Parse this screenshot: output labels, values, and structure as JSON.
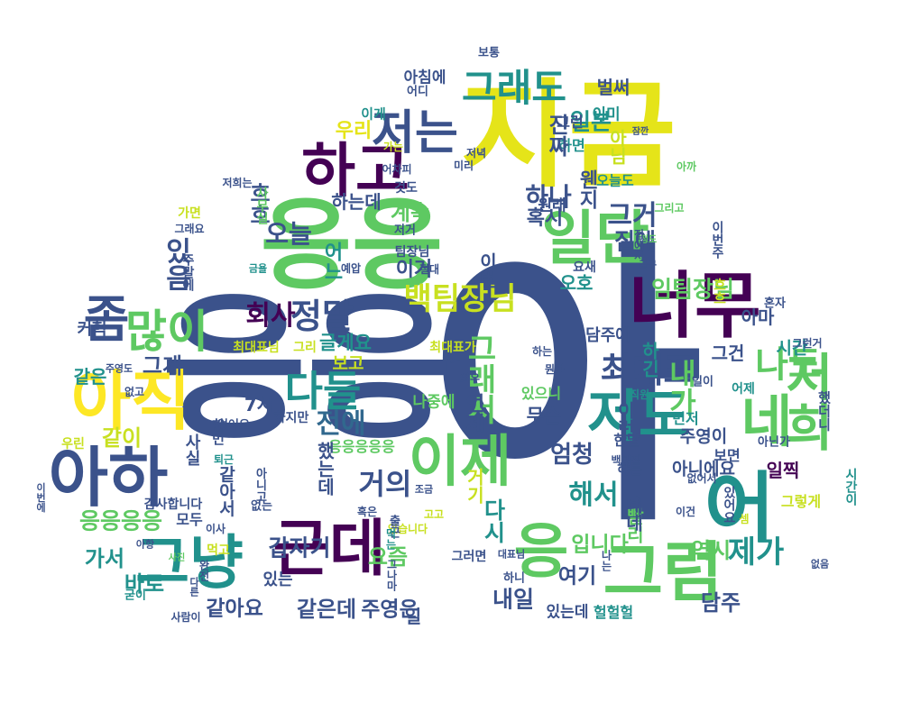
{
  "cloud": {
    "words": [
      {
        "text": "아",
        "color": "#3b528b"
      },
      {
        "text": "응응",
        "color": "#3b528b"
      },
      {
        "text": "지금",
        "color": "#e5e419"
      },
      {
        "text": "응응",
        "color": "#5ec962"
      },
      {
        "text": "하고",
        "color": "#440154"
      },
      {
        "text": "일단",
        "color": "#5ec962"
      },
      {
        "text": "너무",
        "color": "#440154"
      },
      {
        "text": "저는",
        "color": "#3b528b"
      },
      {
        "text": "그래도",
        "color": "#21918c"
      },
      {
        "text": "좀",
        "color": "#3b528b"
      },
      {
        "text": "그냥",
        "color": "#21918c"
      },
      {
        "text": "많이",
        "color": "#5ec962"
      },
      {
        "text": "아직",
        "color": "#fde725"
      },
      {
        "text": "아하",
        "color": "#3b528b"
      },
      {
        "text": "근데",
        "color": "#440154"
      },
      {
        "text": "응",
        "color": "#5ec962"
      },
      {
        "text": "그럼",
        "color": "#5ec962"
      },
      {
        "text": "어",
        "color": "#21918c"
      },
      {
        "text": "저희",
        "color": "#5ec962"
      },
      {
        "text": "네",
        "color": "#5ec962"
      },
      {
        "text": "저도",
        "color": "#21918c"
      },
      {
        "text": "이제",
        "color": "#5ec962"
      },
      {
        "text": "회사",
        "color": "#440154"
      },
      {
        "text": "정말",
        "color": "#3b528b"
      },
      {
        "text": "백팀장님",
        "color": "#c8e020"
      },
      {
        "text": "다들",
        "color": "#21918c"
      },
      {
        "text": "전에",
        "color": "#31688e"
      },
      {
        "text": "거의",
        "color": "#3b528b"
      },
      {
        "text": "최대표",
        "color": "#3b528b"
      },
      {
        "text": "나도",
        "color": "#5ec962"
      },
      {
        "text": "내가",
        "color": "#5ec962"
      },
      {
        "text": "그래서",
        "color": "#5ec962"
      },
      {
        "text": "우리",
        "color": "#e5e419"
      },
      {
        "text": "일본",
        "color": "#21918c"
      },
      {
        "text": "그거",
        "color": "#3b528b"
      },
      {
        "text": "하나",
        "color": "#3b528b"
      },
      {
        "text": "집에",
        "color": "#3b528b"
      },
      {
        "text": "혹시",
        "color": "#3b528b"
      },
      {
        "text": "임팀장님",
        "color": "#5ec962"
      },
      {
        "text": "계속",
        "color": "#5ec962"
      },
      {
        "text": "이거",
        "color": "#3b528b"
      },
      {
        "text": "이번",
        "color": "#3b528b"
      },
      {
        "text": "오호",
        "color": "#21918c"
      },
      {
        "text": "어느",
        "color": "#21918c"
      },
      {
        "text": "하는데",
        "color": "#3b528b"
      },
      {
        "text": "오늘",
        "color": "#3b528b"
      },
      {
        "text": "흐흐",
        "color": "#3b528b"
      },
      {
        "text": "있음",
        "color": "#3b528b"
      },
      {
        "text": "커헉",
        "color": "#3b528b"
      },
      {
        "text": "그게",
        "color": "#3b528b"
      },
      {
        "text": "같은",
        "color": "#21918c"
      },
      {
        "text": "같이",
        "color": "#c8e020"
      },
      {
        "text": "글게요",
        "color": "#21918c"
      },
      {
        "text": "보고",
        "color": "#c8e020"
      },
      {
        "text": "무슨",
        "color": "#3b528b"
      },
      {
        "text": "엄청",
        "color": "#3b528b"
      },
      {
        "text": "해서",
        "color": "#21918c"
      },
      {
        "text": "제가",
        "color": "#21918c"
      },
      {
        "text": "일찍",
        "color": "#440154"
      },
      {
        "text": "시간",
        "color": "#21918c"
      },
      {
        "text": "아마",
        "color": "#3b528b"
      },
      {
        "text": "그건",
        "color": "#3b528b"
      },
      {
        "text": "하긴",
        "color": "#21918c"
      },
      {
        "text": "담주에",
        "color": "#3b528b"
      },
      {
        "text": "주영이",
        "color": "#3b528b"
      },
      {
        "text": "보면",
        "color": "#3b528b"
      },
      {
        "text": "아니에요",
        "color": "#3b528b"
      },
      {
        "text": "이런",
        "color": "#3b528b"
      },
      {
        "text": "빨리",
        "color": "#5ec962"
      },
      {
        "text": "먼저",
        "color": "#21918c"
      },
      {
        "text": "한달",
        "color": "#3b528b"
      },
      {
        "text": "입니다",
        "color": "#5ec962"
      },
      {
        "text": "여기",
        "color": "#3b528b"
      },
      {
        "text": "역시",
        "color": "#5ec962"
      },
      {
        "text": "담주",
        "color": "#3b528b"
      },
      {
        "text": "내일",
        "color": "#3b528b"
      },
      {
        "text": "있는데",
        "color": "#3b528b"
      },
      {
        "text": "헐헐헐",
        "color": "#21918c"
      },
      {
        "text": "요즘",
        "color": "#5ec962"
      },
      {
        "text": "주영은",
        "color": "#3b528b"
      },
      {
        "text": "같은데",
        "color": "#3b528b"
      },
      {
        "text": "같아요",
        "color": "#3b528b"
      },
      {
        "text": "갑자기",
        "color": "#3b528b"
      },
      {
        "text": "있는",
        "color": "#3b528b"
      },
      {
        "text": "바로",
        "color": "#21918c"
      },
      {
        "text": "가서",
        "color": "#21918c"
      },
      {
        "text": "응응응응",
        "color": "#5ec962"
      },
      {
        "text": "응응응응응",
        "color": "#5ec962"
      },
      {
        "text": "감사합니다",
        "color": "#3b528b"
      },
      {
        "text": "모두",
        "color": "#3b528b"
      },
      {
        "text": "7시",
        "color": "#3b528b"
      },
      {
        "text": "나중에",
        "color": "#5ec962"
      },
      {
        "text": "벌써",
        "color": "#3b528b"
      },
      {
        "text": "아침에",
        "color": "#3b528b"
      },
      {
        "text": "어디",
        "color": "#3b528b"
      },
      {
        "text": "보통",
        "color": "#3b528b"
      },
      {
        "text": "이미",
        "color": "#21918c"
      },
      {
        "text": "그런",
        "color": "#3b528b"
      },
      {
        "text": "하면",
        "color": "#21918c"
      },
      {
        "text": "잠깐",
        "color": "#3b528b"
      },
      {
        "text": "이게",
        "color": "#21918c"
      },
      {
        "text": "원래",
        "color": "#3b528b"
      },
      {
        "text": "오늘도",
        "color": "#21918c"
      },
      {
        "text": "그리고",
        "color": "#5ec962"
      },
      {
        "text": "아까",
        "color": "#5ec962"
      },
      {
        "text": "가면",
        "color": "#c8e020"
      },
      {
        "text": "그래요",
        "color": "#3b528b"
      },
      {
        "text": "금욜",
        "color": "#21918c"
      },
      {
        "text": "예압",
        "color": "#3b528b"
      },
      {
        "text": "절대",
        "color": "#3b528b"
      },
      {
        "text": "팀장님",
        "color": "#3b528b"
      },
      {
        "text": "저희는",
        "color": "#3b528b"
      },
      {
        "text": "것도",
        "color": "#3b528b"
      },
      {
        "text": "저거",
        "color": "#3b528b"
      },
      {
        "text": "정도",
        "color": "#5ec962"
      },
      {
        "text": "글구",
        "color": "#3b528b"
      },
      {
        "text": "요새",
        "color": "#3b528b"
      },
      {
        "text": "혼자",
        "color": "#3b528b"
      },
      {
        "text": "최대표님",
        "color": "#c8e020"
      },
      {
        "text": "그리",
        "color": "#c8e020"
      },
      {
        "text": "최대표가",
        "color": "#c8e020"
      },
      {
        "text": "와우",
        "color": "#3b528b"
      },
      {
        "text": "뭔가",
        "color": "#3b528b"
      },
      {
        "text": "일이",
        "color": "#3b528b"
      },
      {
        "text": "직원",
        "color": "#21918c"
      },
      {
        "text": "있으니",
        "color": "#5ec962"
      },
      {
        "text": "아닌가",
        "color": "#3b528b"
      },
      {
        "text": "했더니",
        "color": "#3b528b"
      },
      {
        "text": "백팀장",
        "color": "#3b528b"
      },
      {
        "text": "하튼",
        "color": "#3b528b"
      },
      {
        "text": "없어서",
        "color": "#3b528b"
      },
      {
        "text": "사진",
        "color": "#5ec962"
      },
      {
        "text": "먹고",
        "color": "#c8e020"
      },
      {
        "text": "아항",
        "color": "#3b528b"
      },
      {
        "text": "이사",
        "color": "#3b528b"
      },
      {
        "text": "굳이",
        "color": "#21918c"
      },
      {
        "text": "사람이",
        "color": "#3b528b"
      },
      {
        "text": "하지만",
        "color": "#3b528b"
      },
      {
        "text": "없어요",
        "color": "#3b528b"
      },
      {
        "text": "조금",
        "color": "#3b528b"
      },
      {
        "text": "고고",
        "color": "#c8e020"
      },
      {
        "text": "그러면",
        "color": "#3b528b"
      },
      {
        "text": "대표님",
        "color": "#3b528b"
      },
      {
        "text": "하니",
        "color": "#3b528b"
      },
      {
        "text": "있습니다",
        "color": "#c8e020"
      },
      {
        "text": "없는",
        "color": "#3b528b"
      },
      {
        "text": "퇴근",
        "color": "#21918c"
      },
      {
        "text": "우린",
        "color": "#c8e020"
      },
      {
        "text": "없고",
        "color": "#3b528b"
      },
      {
        "text": "주영도",
        "color": "#3b528b"
      },
      {
        "text": "그런거",
        "color": "#3b528b"
      },
      {
        "text": "어제",
        "color": "#21918c"
      },
      {
        "text": "이건",
        "color": "#3b528b"
      },
      {
        "text": "없음",
        "color": "#3b528b"
      },
      {
        "text": "셈",
        "color": "#c8e020"
      },
      {
        "text": "그렇게",
        "color": "#c8e020"
      },
      {
        "text": "시간이",
        "color": "#21918c"
      },
      {
        "text": "이번주",
        "color": "#3b528b"
      },
      {
        "text": "집에서",
        "color": "#3b528b"
      },
      {
        "text": "흐흐",
        "color": "#c8e020"
      },
      {
        "text": "진짜",
        "color": "#3b528b"
      },
      {
        "text": "웬지",
        "color": "#3b528b"
      },
      {
        "text": "아님",
        "color": "#c8e020"
      },
      {
        "text": "저녁",
        "color": "#3b528b"
      },
      {
        "text": "어차피",
        "color": "#3b528b"
      },
      {
        "text": "미리",
        "color": "#3b528b"
      },
      {
        "text": "가는",
        "color": "#c8e020"
      },
      {
        "text": "했는데",
        "color": "#3b528b"
      },
      {
        "text": "언제",
        "color": "#3b528b"
      },
      {
        "text": "다시",
        "color": "#21918c"
      },
      {
        "text": "거기",
        "color": "#c8e020"
      },
      {
        "text": "네네",
        "color": "#3b528b"
      },
      {
        "text": "있어요",
        "color": "#3b528b"
      },
      {
        "text": "혹은",
        "color": "#3b528b"
      },
      {
        "text": "사실",
        "color": "#3b528b"
      },
      {
        "text": "아니고",
        "color": "#3b528b"
      },
      {
        "text": "출근",
        "color": "#3b528b"
      },
      {
        "text": "주말에",
        "color": "#3b528b"
      },
      {
        "text": "사무실",
        "color": "#5ec962"
      },
      {
        "text": "먹는",
        "color": "#21918c"
      },
      {
        "text": "그나마",
        "color": "#3b528b"
      },
      {
        "text": "완전",
        "color": "#3b528b"
      },
      {
        "text": "다른",
        "color": "#3b528b"
      },
      {
        "text": "나는",
        "color": "#3b528b"
      },
      {
        "text": "이번에",
        "color": "#3b528b"
      },
      {
        "text": "같아서",
        "color": "#3b528b"
      },
      {
        "text": "한번",
        "color": "#3b528b"
      },
      {
        "text": "하는",
        "color": "#3b528b"
      },
      {
        "text": "일",
        "color": "#3b528b"
      },
      {
        "text": "-ㅇ-",
        "color": "#3b528b"
      }
    ]
  }
}
